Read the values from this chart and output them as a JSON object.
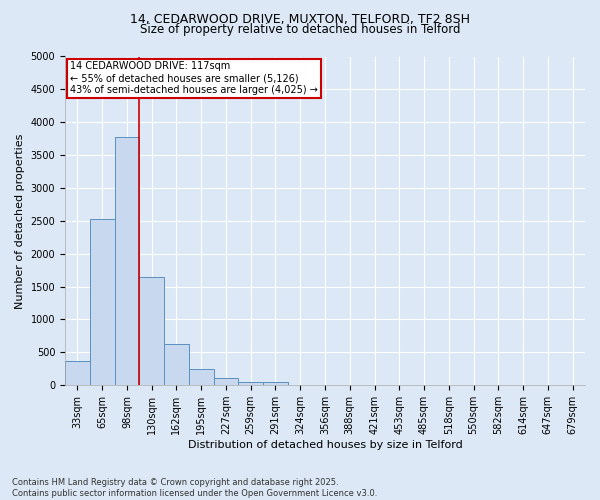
{
  "title_line1": "14, CEDARWOOD DRIVE, MUXTON, TELFORD, TF2 8SH",
  "title_line2": "Size of property relative to detached houses in Telford",
  "xlabel": "Distribution of detached houses by size in Telford",
  "ylabel": "Number of detached properties",
  "categories": [
    "33sqm",
    "65sqm",
    "98sqm",
    "130sqm",
    "162sqm",
    "195sqm",
    "227sqm",
    "259sqm",
    "291sqm",
    "324sqm",
    "356sqm",
    "388sqm",
    "421sqm",
    "453sqm",
    "485sqm",
    "518sqm",
    "550sqm",
    "582sqm",
    "614sqm",
    "647sqm",
    "679sqm"
  ],
  "values": [
    375,
    2525,
    3775,
    1650,
    625,
    250,
    110,
    50,
    50,
    0,
    0,
    0,
    0,
    0,
    0,
    0,
    0,
    0,
    0,
    0,
    0
  ],
  "bar_color": "#c8d8ee",
  "bar_edge_color": "#5a8fc0",
  "vline_x": 2.5,
  "vline_color": "#cc0000",
  "ylim": [
    0,
    5000
  ],
  "yticks": [
    0,
    500,
    1000,
    1500,
    2000,
    2500,
    3000,
    3500,
    4000,
    4500,
    5000
  ],
  "annotation_text": "14 CEDARWOOD DRIVE: 117sqm\n← 55% of detached houses are smaller (5,126)\n43% of semi-detached houses are larger (4,025) →",
  "annotation_box_color": "#cc0000",
  "footer_line1": "Contains HM Land Registry data © Crown copyright and database right 2025.",
  "footer_line2": "Contains public sector information licensed under the Open Government Licence v3.0.",
  "background_color": "#dce8f5",
  "plot_bg_color": "#dce8f5",
  "grid_color": "#ffffff",
  "title_fontsize": 9,
  "tick_fontsize": 7,
  "ylabel_fontsize": 8,
  "xlabel_fontsize": 8
}
